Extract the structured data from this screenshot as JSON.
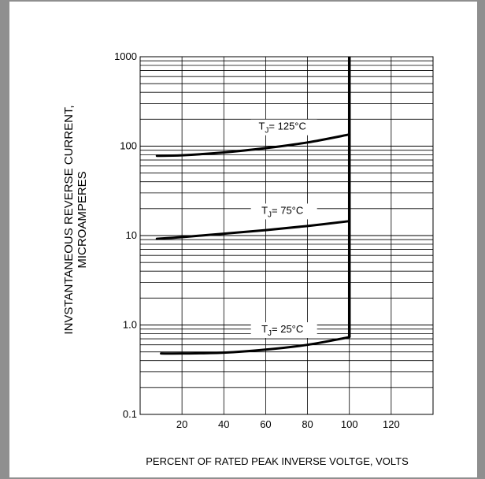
{
  "chart_data": {
    "type": "line",
    "xlabel": "PERCENT OF RATED PEAK INVERSE VOLTGE, VOLTS",
    "ylabel_lines": [
      "INVSTANTANEOUS REVERSE CURRENT,",
      "MICROAMPERES"
    ],
    "x_ticks": [
      "20",
      "40",
      "60",
      "80",
      "100",
      "120"
    ],
    "x_tick_values": [
      20,
      40,
      60,
      80,
      100,
      120
    ],
    "y_ticks": [
      "0.1",
      "1.0",
      "10",
      "100",
      "1000"
    ],
    "y_tick_values": [
      0.1,
      1,
      10,
      100,
      1000
    ],
    "xlim": [
      0,
      140
    ],
    "ylim": [
      0.1,
      1000
    ],
    "y_scale": "log",
    "grid": true,
    "vertical_line_x": 100,
    "series": [
      {
        "label_base": "T",
        "label_sub": "J",
        "label_rest": "= 125°C",
        "label_x": 68,
        "label_y": 135,
        "x": [
          8,
          20,
          40,
          60,
          80,
          100
        ],
        "y": [
          78,
          79,
          85,
          95,
          110,
          135
        ]
      },
      {
        "label_base": "T",
        "label_sub": "J",
        "label_rest": "= 75°C",
        "label_x": 68,
        "label_y": 15.5,
        "x": [
          8,
          20,
          40,
          60,
          80,
          100
        ],
        "y": [
          9.2,
          9.6,
          10.5,
          11.5,
          12.8,
          14.5
        ]
      },
      {
        "label_base": "T",
        "label_sub": "J",
        "label_rest": "= 25°C",
        "label_x": 68,
        "label_y": 0.73,
        "x": [
          10,
          20,
          40,
          60,
          80,
          100
        ],
        "y": [
          0.48,
          0.48,
          0.49,
          0.53,
          0.6,
          0.73
        ]
      }
    ]
  }
}
